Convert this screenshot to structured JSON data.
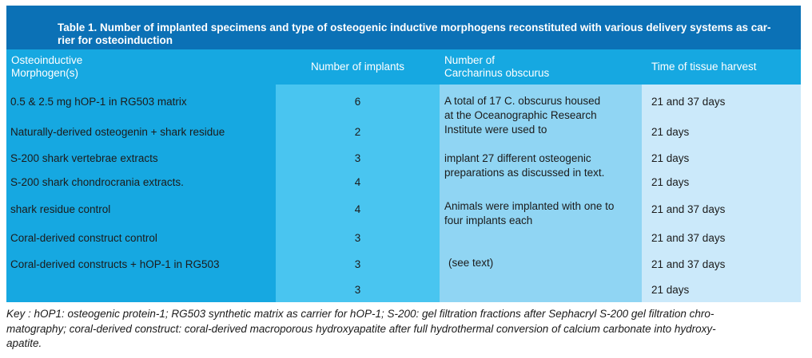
{
  "title": "Table 1. Number of implanted specimens and type of osteogenic inductive morphogens reconstituted with various delivery systems as car-\nrier for osteoinduction",
  "columns": {
    "morphogen": "Osteoinductive\nMorphogen(s)",
    "implants": "Number of implants",
    "sharks": "Number of\nCarcharinus obscurus",
    "harvest": "Time of tissue harvest"
  },
  "rows": [
    {
      "morphogen": "0.5 & 2.5 mg hOP-1 in RG503 matrix",
      "implants": "6",
      "harvest": "21 and 37 days"
    },
    {
      "morphogen": "Naturally-derived osteogenin + shark residue",
      "implants": "2",
      "harvest": "21 days"
    },
    {
      "morphogen": "S-200 shark vertebrae extracts",
      "implants": "3",
      "harvest": "21 days"
    },
    {
      "morphogen": "S-200 shark chondrocrania extracts.",
      "implants": "4",
      "harvest": "21 days"
    },
    {
      "morphogen": "shark residue control",
      "implants": "4",
      "harvest": "21 and 37 days"
    },
    {
      "morphogen": "Coral-derived construct control",
      "implants": "3",
      "harvest": "21 and 37 days"
    },
    {
      "morphogen": "Coral-derived constructs + hOP-1 in RG503",
      "implants": "3",
      "harvest": "21 and 37 days"
    },
    {
      "morphogen": "",
      "implants": "3",
      "harvest": "21 days"
    }
  ],
  "shark_notes": [
    "A total of 17 C. obscurus  housed\nat the Oceanographic Research\nInstitute were used to",
    "implant 27 different osteogenic\npreparations as discussed in text.",
    "Animals were implanted with one to\nfour implants each",
    "(see text)"
  ],
  "key": "Key : hOP1: osteogenic protein-1; RG503 synthetic matrix as carrier for hOP-1; S-200: gel filtration fractions after Sephacryl S-200 gel filtration chro-\nmatography; coral-derived construct: coral-derived macroporous hydroxyapatite after full hydrothermal conversion of calcium carbonate into hydroxy-\napatite.",
  "colors": {
    "title_bar": "#0B71B6",
    "header_row": "#16A8E1",
    "col_morphogen": "#16A8E1",
    "col_implants": "#49C5F0",
    "col_sharks": "#90D5F3",
    "col_harvest": "#CBE9FA"
  }
}
